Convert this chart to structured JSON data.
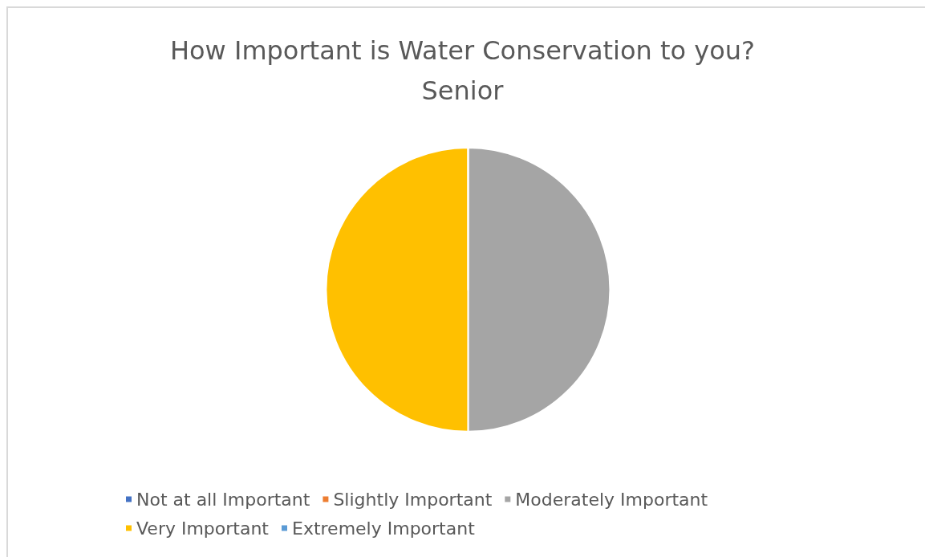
{
  "chart_data": {
    "type": "pie",
    "title": "How Important is Water Conservation to you?",
    "subtitle": "Senior",
    "categories": [
      "Not at all Important",
      "Slightly Important",
      "Moderately Important",
      "Very Important",
      "Extremely Important"
    ],
    "values": [
      0,
      0,
      50,
      50,
      0
    ],
    "colors": [
      "#4472c4",
      "#ed7d31",
      "#a5a5a5",
      "#ffc000",
      "#5b9bd5"
    ],
    "legend": "bottom"
  }
}
